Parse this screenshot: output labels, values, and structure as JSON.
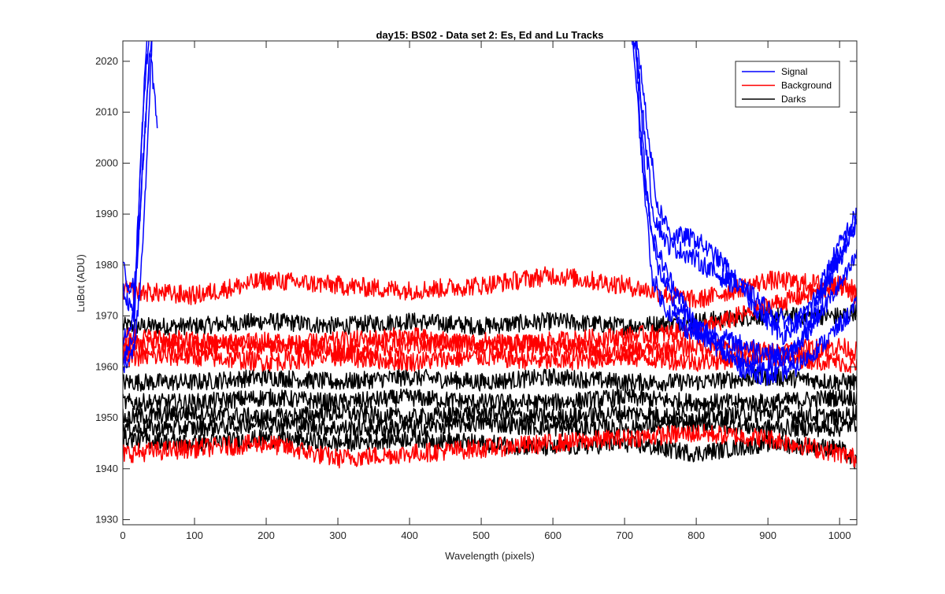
{
  "chart_data": {
    "type": "line",
    "title": "day15: BS02 - Data set 2: Es, Ed and Lu Tracks",
    "xlabel": "Wavelength (pixels)",
    "ylabel": "LuBot (ADU)",
    "xlim": [
      0,
      1024
    ],
    "ylim": [
      1929,
      2024
    ],
    "xticks": [
      "0",
      "100",
      "200",
      "300",
      "400",
      "500",
      "600",
      "700",
      "800",
      "900",
      "1000"
    ],
    "yticks": [
      "1930",
      "1940",
      "1950",
      "1960",
      "1970",
      "1980",
      "1990",
      "2000",
      "2010",
      "2020"
    ],
    "grid": false,
    "legend_position": "top-right",
    "legend": [
      {
        "label": "Signal",
        "color": "#0000ff"
      },
      {
        "label": "Background",
        "color": "#ff0000"
      },
      {
        "label": "Darks",
        "color": "#000000"
      }
    ],
    "series": [
      {
        "group": "Signal",
        "color": "#0000ff",
        "x": [
          0,
          15,
          20,
          25,
          30,
          40,
          50
        ],
        "y": [
          1976,
          1970,
          1985,
          2000,
          2015,
          2030,
          2030
        ],
        "x2": [
          700,
          715,
          725,
          740,
          760,
          800,
          850,
          900,
          930,
          960,
          990,
          1024
        ],
        "y2": [
          2030,
          2025,
          2000,
          1985,
          1978,
          1968,
          1965,
          1963,
          1962,
          1968,
          1980,
          1988
        ]
      },
      {
        "group": "Signal",
        "color": "#0000ff",
        "x": [
          0,
          15,
          22,
          28,
          35,
          45
        ],
        "y": [
          1962,
          1966,
          1990,
          2010,
          2030,
          2030
        ],
        "x2": [
          705,
          720,
          730,
          745,
          770,
          810,
          850,
          900,
          940,
          980,
          1010,
          1024
        ],
        "y2": [
          2030,
          2018,
          1995,
          1980,
          1972,
          1966,
          1962,
          1960,
          1964,
          1972,
          1978,
          1982
        ]
      },
      {
        "group": "Signal",
        "color": "#0000ff",
        "x": [
          0,
          12,
          20,
          30,
          38,
          48
        ],
        "y": [
          1965,
          1968,
          1980,
          2005,
          2022,
          2008
        ],
        "x2": [
          710,
          725,
          740,
          760,
          790,
          830,
          870,
          910,
          950,
          990,
          1024
        ],
        "y2": [
          2030,
          2010,
          1990,
          1984,
          1982,
          1978,
          1975,
          1970,
          1968,
          1978,
          1988
        ]
      },
      {
        "group": "Signal",
        "color": "#0000ff",
        "x": [
          0,
          10,
          18,
          26,
          36,
          46
        ],
        "y": [
          1980,
          1975,
          1978,
          1995,
          2018,
          2030
        ],
        "x2": [
          712,
          728,
          745,
          765,
          800,
          840,
          880,
          920,
          960,
          1000,
          1024
        ],
        "y2": [
          2030,
          2012,
          1992,
          1986,
          1985,
          1980,
          1972,
          1966,
          1972,
          1984,
          1990
        ]
      },
      {
        "group": "Signal",
        "color": "#0000ff",
        "x": [
          0,
          14,
          24,
          32,
          42
        ],
        "y": [
          1960,
          1962,
          1975,
          1995,
          2030
        ],
        "x2": [
          708,
          722,
          738,
          755,
          780,
          820,
          860,
          900,
          940,
          980,
          1024
        ],
        "y2": [
          2030,
          2005,
          1978,
          1972,
          1968,
          1965,
          1960,
          1958,
          1960,
          1965,
          1972
        ]
      },
      {
        "group": "Background",
        "color": "#ff0000",
        "x": [
          0,
          100,
          200,
          300,
          400,
          500,
          600,
          700,
          800,
          900,
          1000,
          1024
        ],
        "y": [
          1975,
          1974,
          1977,
          1976,
          1975,
          1976,
          1978,
          1976,
          1973,
          1977,
          1976,
          1975
        ],
        "noise": 1.2
      },
      {
        "group": "Background",
        "color": "#ff0000",
        "x": [
          0,
          100,
          200,
          300,
          400,
          500,
          600,
          700,
          800,
          900,
          1000,
          1024
        ],
        "y": [
          1966,
          1965,
          1964,
          1965,
          1966,
          1964,
          1965,
          1966,
          1967,
          1972,
          1976,
          1974
        ],
        "noise": 1.2
      },
      {
        "group": "Background",
        "color": "#ff0000",
        "x": [
          0,
          100,
          200,
          300,
          400,
          500,
          600,
          700,
          800,
          900,
          1000,
          1024
        ],
        "y": [
          1964,
          1964,
          1965,
          1963,
          1964,
          1965,
          1964,
          1963,
          1964,
          1963,
          1964,
          1963
        ],
        "noise": 1.2
      },
      {
        "group": "Background",
        "color": "#ff0000",
        "x": [
          0,
          100,
          200,
          300,
          400,
          500,
          600,
          700,
          800,
          900,
          1000,
          1024
        ],
        "y": [
          1962,
          1962,
          1961,
          1962,
          1961,
          1962,
          1961,
          1962,
          1961,
          1962,
          1961,
          1960
        ],
        "noise": 1.2
      },
      {
        "group": "Background",
        "color": "#ff0000",
        "x": [
          0,
          100,
          200,
          300,
          400,
          500,
          600,
          700,
          800,
          900,
          1000,
          1024
        ],
        "y": [
          1943,
          1944,
          1945,
          1942,
          1943,
          1944,
          1945,
          1946,
          1947,
          1946,
          1943,
          1942
        ],
        "noise": 1.2
      },
      {
        "group": "Darks",
        "color": "#000000",
        "x": [
          0,
          100,
          200,
          300,
          400,
          500,
          600,
          700,
          800,
          900,
          1000,
          1024
        ],
        "y": [
          1968,
          1968,
          1969,
          1968,
          1969,
          1968,
          1969,
          1968,
          1969,
          1970,
          1970,
          1971
        ],
        "noise": 1.1
      },
      {
        "group": "Darks",
        "color": "#000000",
        "x": [
          0,
          100,
          200,
          300,
          400,
          500,
          600,
          700,
          800,
          900,
          1000,
          1024
        ],
        "y": [
          1957,
          1957,
          1958,
          1957,
          1958,
          1957,
          1958,
          1957,
          1957,
          1958,
          1957,
          1957
        ],
        "noise": 1.1
      },
      {
        "group": "Darks",
        "color": "#000000",
        "x": [
          0,
          100,
          200,
          300,
          400,
          500,
          600,
          700,
          800,
          900,
          1000,
          1024
        ],
        "y": [
          1953,
          1953,
          1954,
          1953,
          1954,
          1953,
          1953,
          1954,
          1953,
          1953,
          1954,
          1954
        ],
        "noise": 1.1
      },
      {
        "group": "Darks",
        "color": "#000000",
        "x": [
          0,
          100,
          200,
          300,
          400,
          500,
          600,
          700,
          800,
          900,
          1000,
          1024
        ],
        "y": [
          1950,
          1951,
          1950,
          1951,
          1950,
          1951,
          1950,
          1951,
          1950,
          1951,
          1950,
          1951
        ],
        "noise": 1.1
      },
      {
        "group": "Darks",
        "color": "#000000",
        "x": [
          0,
          100,
          200,
          300,
          400,
          500,
          600,
          700,
          800,
          900,
          1000,
          1024
        ],
        "y": [
          1948,
          1948,
          1949,
          1948,
          1948,
          1949,
          1948,
          1948,
          1949,
          1948,
          1948,
          1949
        ],
        "noise": 1.1
      },
      {
        "group": "Darks",
        "color": "#000000",
        "x": [
          0,
          100,
          200,
          300,
          400,
          500,
          600,
          700,
          800,
          900,
          1000,
          1024
        ],
        "y": [
          1946,
          1945,
          1946,
          1945,
          1946,
          1945,
          1944,
          1945,
          1943,
          1945,
          1944,
          1941
        ],
        "noise": 1.1
      }
    ]
  }
}
